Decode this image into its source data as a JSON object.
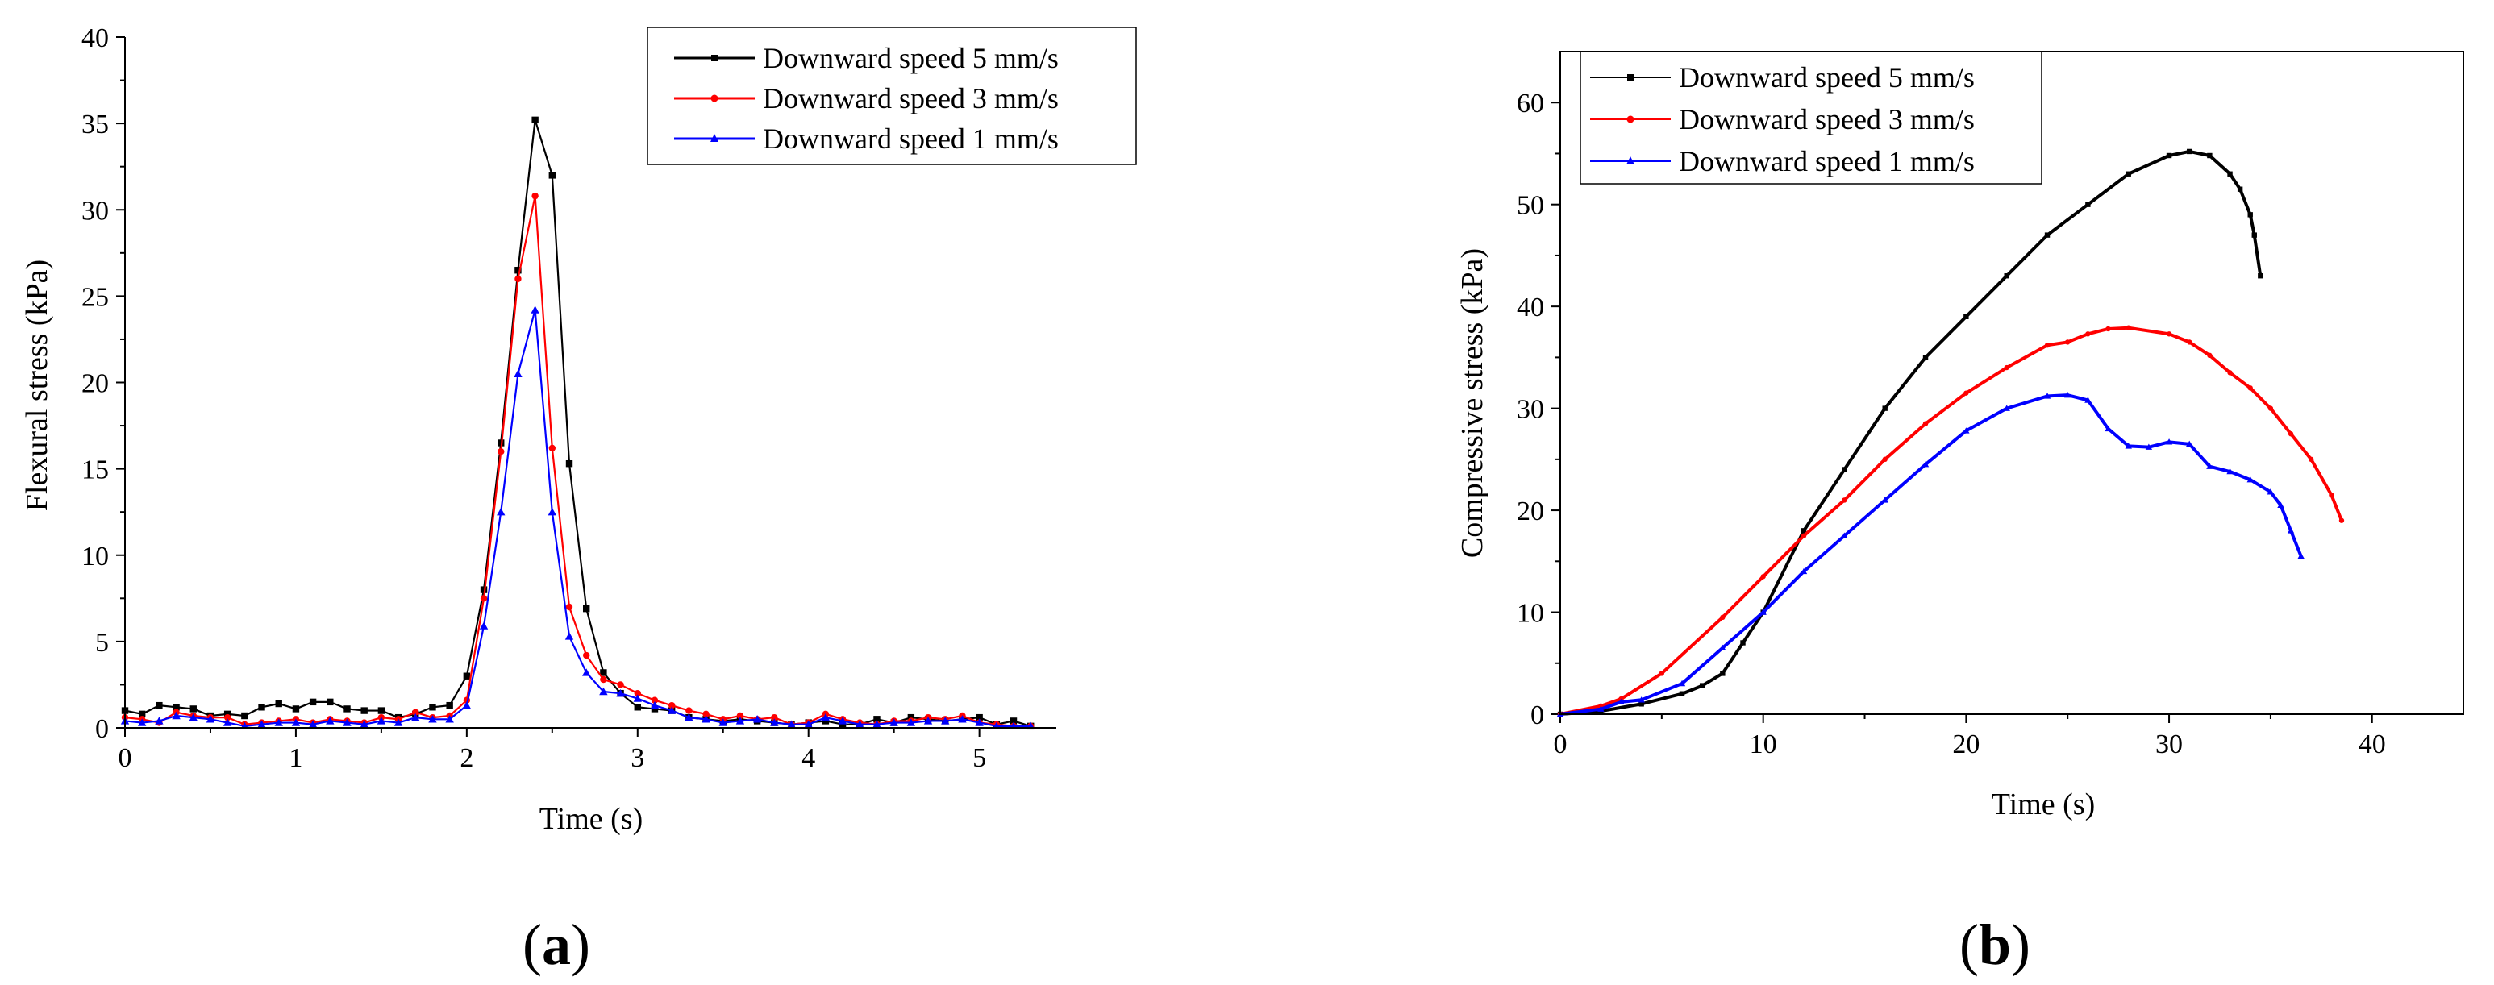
{
  "colors": {
    "series_5mm": "#000000",
    "series_3mm": "#ff0000",
    "series_1mm": "#0000ff"
  },
  "chart_data": [
    {
      "type": "line",
      "panel": "(a)",
      "panel_open": "(",
      "panel_letter": "a",
      "panel_close": ")",
      "xlabel": "Time (s)",
      "ylabel": "Flexural stress (kPa)",
      "xlim": [
        0,
        5.45
      ],
      "ylim": [
        0,
        40
      ],
      "xticks": [
        0,
        1,
        2,
        3,
        4,
        5
      ],
      "yticks": [
        0,
        5,
        10,
        15,
        20,
        25,
        30,
        35,
        40
      ],
      "legend": [
        "Downward speed 5 mm/s",
        "Downward speed 3 mm/s",
        "Downward speed 1 mm/s"
      ],
      "series": [
        {
          "name": "Downward speed 5 mm/s",
          "color": "#000000",
          "marker": "square",
          "x": [
            0,
            0.1,
            0.2,
            0.3,
            0.4,
            0.5,
            0.6,
            0.7,
            0.8,
            0.9,
            1.0,
            1.1,
            1.2,
            1.3,
            1.4,
            1.5,
            1.6,
            1.7,
            1.8,
            1.9,
            2.0,
            2.1,
            2.2,
            2.3,
            2.4,
            2.5,
            2.6,
            2.7,
            2.8,
            2.9,
            3.0,
            3.1,
            3.2,
            3.3,
            3.4,
            3.5,
            3.6,
            3.7,
            3.8,
            3.9,
            4.0,
            4.1,
            4.2,
            4.3,
            4.4,
            4.5,
            4.6,
            4.7,
            4.8,
            4.9,
            5.0,
            5.1,
            5.2,
            5.3
          ],
          "y": [
            1.0,
            0.8,
            1.3,
            1.2,
            1.1,
            0.7,
            0.8,
            0.7,
            1.2,
            1.4,
            1.1,
            1.5,
            1.5,
            1.1,
            1.0,
            1.0,
            0.6,
            0.8,
            1.2,
            1.3,
            3.0,
            8.0,
            16.5,
            26.5,
            35.2,
            32.0,
            15.3,
            6.9,
            3.2,
            2.0,
            1.2,
            1.1,
            1.0,
            0.6,
            0.5,
            0.4,
            0.5,
            0.4,
            0.3,
            0.2,
            0.3,
            0.4,
            0.2,
            0.2,
            0.5,
            0.3,
            0.6,
            0.5,
            0.4,
            0.5,
            0.6,
            0.2,
            0.4,
            0.1
          ]
        },
        {
          "name": "Downward speed 3 mm/s",
          "color": "#ff0000",
          "marker": "circle",
          "x": [
            0,
            0.1,
            0.2,
            0.3,
            0.4,
            0.5,
            0.6,
            0.7,
            0.8,
            0.9,
            1.0,
            1.1,
            1.2,
            1.3,
            1.4,
            1.5,
            1.6,
            1.7,
            1.8,
            1.9,
            2.0,
            2.1,
            2.2,
            2.3,
            2.4,
            2.5,
            2.6,
            2.7,
            2.8,
            2.9,
            3.0,
            3.1,
            3.2,
            3.3,
            3.4,
            3.5,
            3.6,
            3.7,
            3.8,
            3.9,
            4.0,
            4.1,
            4.2,
            4.3,
            4.4,
            4.5,
            4.6,
            4.7,
            4.8,
            4.9,
            5.0,
            5.1,
            5.2,
            5.3
          ],
          "y": [
            0.6,
            0.5,
            0.3,
            0.9,
            0.7,
            0.6,
            0.6,
            0.2,
            0.3,
            0.4,
            0.5,
            0.3,
            0.5,
            0.4,
            0.3,
            0.6,
            0.5,
            0.9,
            0.6,
            0.7,
            1.6,
            7.5,
            16.0,
            26.0,
            30.8,
            16.2,
            7.0,
            4.2,
            2.8,
            2.5,
            2.0,
            1.6,
            1.3,
            1.0,
            0.8,
            0.5,
            0.7,
            0.5,
            0.6,
            0.2,
            0.3,
            0.8,
            0.5,
            0.3,
            0.2,
            0.4,
            0.4,
            0.6,
            0.5,
            0.7,
            0.3,
            0.2,
            0.1,
            0.1
          ]
        },
        {
          "name": "Downward speed 1 mm/s",
          "color": "#0000ff",
          "marker": "triangle",
          "x": [
            0,
            0.1,
            0.2,
            0.3,
            0.4,
            0.5,
            0.6,
            0.7,
            0.8,
            0.9,
            1.0,
            1.1,
            1.2,
            1.3,
            1.4,
            1.5,
            1.6,
            1.7,
            1.8,
            1.9,
            2.0,
            2.1,
            2.2,
            2.3,
            2.4,
            2.5,
            2.6,
            2.7,
            2.8,
            2.9,
            3.0,
            3.1,
            3.2,
            3.3,
            3.4,
            3.5,
            3.6,
            3.7,
            3.8,
            3.9,
            4.0,
            4.1,
            4.2,
            4.3,
            4.4,
            4.5,
            4.6,
            4.7,
            4.8,
            4.9,
            5.0,
            5.1,
            5.2,
            5.3
          ],
          "y": [
            0.4,
            0.3,
            0.4,
            0.7,
            0.6,
            0.5,
            0.3,
            0.1,
            0.2,
            0.3,
            0.3,
            0.2,
            0.4,
            0.3,
            0.2,
            0.4,
            0.3,
            0.6,
            0.5,
            0.5,
            1.3,
            5.9,
            12.5,
            20.5,
            24.2,
            12.5,
            5.3,
            3.2,
            2.1,
            2.0,
            1.7,
            1.3,
            1.0,
            0.6,
            0.5,
            0.3,
            0.4,
            0.5,
            0.3,
            0.2,
            0.2,
            0.6,
            0.4,
            0.2,
            0.2,
            0.3,
            0.3,
            0.4,
            0.4,
            0.5,
            0.3,
            0.1,
            0.1,
            0.1
          ]
        }
      ]
    },
    {
      "type": "line",
      "panel": "(b)",
      "panel_open": "(",
      "panel_letter": "b",
      "panel_close": ")",
      "xlabel": "Time (s)",
      "ylabel": "Compressive stress (kPa)",
      "xlim": [
        0,
        44.5
      ],
      "ylim": [
        0,
        65
      ],
      "xticks": [
        0,
        10,
        20,
        30,
        40
      ],
      "yticks": [
        0,
        10,
        20,
        30,
        40,
        50,
        60
      ],
      "legend": [
        "Downward speed 5 mm/s",
        "Downward speed 3 mm/s",
        "Downward speed 1 mm/s"
      ],
      "series": [
        {
          "name": "Downward speed 5 mm/s",
          "color": "#000000",
          "marker": "square",
          "x": [
            0,
            2,
            4,
            6,
            7,
            8,
            9,
            10,
            12,
            14,
            16,
            18,
            20,
            22,
            24,
            26,
            28,
            30,
            31,
            32,
            33,
            33.5,
            34,
            34.2,
            34.5
          ],
          "y": [
            0,
            0.3,
            1,
            2,
            2.8,
            4,
            7,
            10,
            18,
            24,
            30,
            35,
            39,
            43,
            47,
            50,
            53,
            54.8,
            55.2,
            54.8,
            53,
            51.5,
            49,
            47,
            43
          ]
        },
        {
          "name": "Downward speed 3 mm/s",
          "color": "#ff0000",
          "marker": "circle",
          "x": [
            0,
            2,
            3,
            5,
            8,
            10,
            12,
            14,
            16,
            18,
            20,
            22,
            24,
            25,
            26,
            27,
            28,
            30,
            31,
            32,
            33,
            34,
            35,
            36,
            37,
            38,
            38.5
          ],
          "y": [
            0,
            0.8,
            1.5,
            4,
            9.5,
            13.5,
            17.5,
            21,
            25,
            28.5,
            31.5,
            34,
            36.2,
            36.5,
            37.3,
            37.8,
            37.9,
            37.3,
            36.5,
            35.2,
            33.5,
            32,
            30,
            27.5,
            25,
            21.5,
            19
          ]
        },
        {
          "name": "Downward speed 1 mm/s",
          "color": "#0000ff",
          "marker": "triangle",
          "x": [
            0,
            2,
            3,
            4,
            6,
            8,
            10,
            12,
            14,
            16,
            18,
            20,
            22,
            24,
            25,
            26,
            27,
            28,
            29,
            30,
            31,
            32,
            33,
            34,
            35,
            35.5,
            36,
            36.5
          ],
          "y": [
            0,
            0.5,
            1.2,
            1.4,
            3,
            6.5,
            10,
            14,
            17.5,
            21,
            24.5,
            27.8,
            30,
            31.2,
            31.3,
            30.8,
            28,
            26.3,
            26.2,
            26.7,
            26.5,
            24.3,
            23.8,
            23,
            21.8,
            20.5,
            18,
            15.5
          ]
        }
      ]
    }
  ]
}
